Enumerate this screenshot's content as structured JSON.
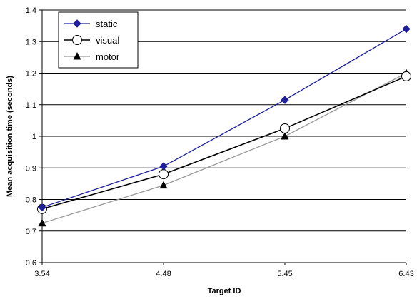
{
  "chart_data": {
    "type": "line",
    "title": "",
    "xlabel": "Target ID",
    "ylabel": "Mean acquisition time (seconds)",
    "categories": [
      "3.54",
      "4.48",
      "5.45",
      "6.43"
    ],
    "ylim": [
      0.6,
      1.4
    ],
    "yticks": [
      "0.6",
      "0.7",
      "0.8",
      "0.9",
      "1",
      "1.1",
      "1.2",
      "1.3",
      "1.4"
    ],
    "grid": true,
    "legend_position": "top-left",
    "series": [
      {
        "name": "static",
        "values": [
          0.775,
          0.905,
          1.115,
          1.34
        ],
        "color": "#1f1f99",
        "marker": "diamond"
      },
      {
        "name": "visual",
        "values": [
          0.77,
          0.88,
          1.025,
          1.19
        ],
        "color": "#000000",
        "marker": "open-circle"
      },
      {
        "name": "motor",
        "values": [
          0.725,
          0.845,
          1.0,
          1.2
        ],
        "color": "#999999",
        "marker": "triangle"
      }
    ]
  }
}
